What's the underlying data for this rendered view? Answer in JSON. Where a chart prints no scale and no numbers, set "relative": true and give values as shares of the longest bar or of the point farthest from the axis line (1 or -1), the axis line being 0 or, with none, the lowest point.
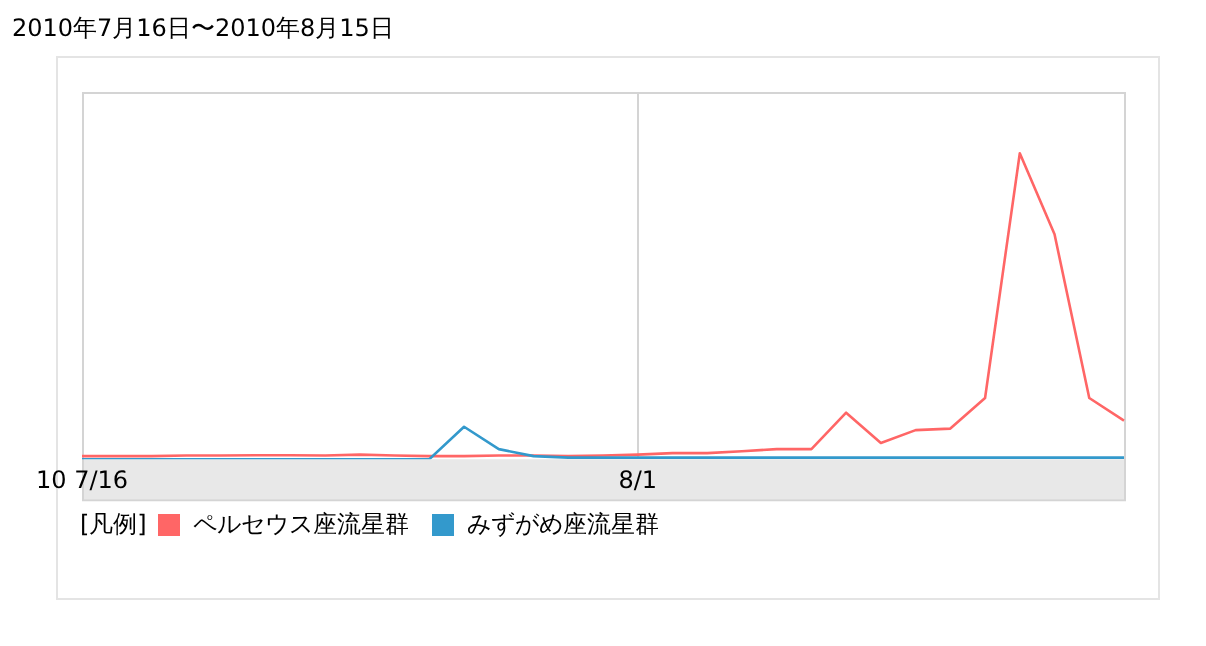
{
  "chart_data": {
    "type": "line",
    "title": "2010年7月16日〜2010年8月15日",
    "relative": true,
    "legend": "bottom left",
    "legend_title": "[凡例]",
    "grid": "x",
    "marker": "none",
    "line_style": "solid",
    "categories": [
      "10 7/16",
      null,
      null,
      null,
      null,
      null,
      null,
      null,
      null,
      null,
      null,
      null,
      null,
      null,
      null,
      null,
      "8/1",
      null,
      null,
      null,
      null,
      null,
      null,
      null,
      null,
      null,
      null,
      null,
      null,
      null,
      null
    ],
    "series": [
      {
        "name": "ペルセウス座流星群",
        "color": "#ff6666",
        "values": [
          0.01,
          0.01,
          0.01,
          0.012,
          0.012,
          0.013,
          0.013,
          0.012,
          0.015,
          0.012,
          0.01,
          0.01,
          0.012,
          0.012,
          0.01,
          0.012,
          0.015,
          0.02,
          0.02,
          0.026,
          0.033,
          0.033,
          0.152,
          0.053,
          0.095,
          0.1,
          0.2,
          1,
          0.735,
          0.2,
          0.126
        ]
      },
      {
        "name": "みずがめ座流星群",
        "color": "#3399cc",
        "values": [
          0,
          0,
          0,
          0,
          0,
          0,
          0,
          0,
          0,
          0,
          0,
          0.106,
          0.033,
          0.01,
          0.005,
          0.005,
          0.005,
          0.005,
          0.005,
          0.005,
          0.005,
          0.005,
          0.005,
          0.005,
          0.005,
          0.005,
          0.005,
          0.005,
          0.005,
          0.005,
          0.005
        ]
      }
    ]
  }
}
